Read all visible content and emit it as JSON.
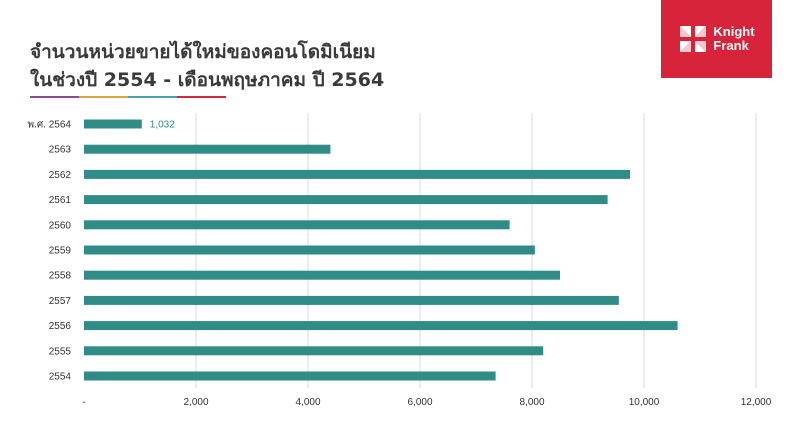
{
  "header": {
    "title_line1": "จำนวนหน่วยขายได้ใหม่ของคอนโดมิเนียม",
    "title_line2": "ในช่วงปี 2554 - เดือนพฤษภาคม ปี 2564"
  },
  "logo": {
    "line1": "Knight",
    "line2": "Frank",
    "icon": "knight-frank-mark",
    "color": "#d8243a"
  },
  "colors": {
    "bar": "#2f8c87",
    "grid": "#d9d9d9",
    "rule": [
      "#8e4a9a",
      "#e0a63c",
      "#4aa0b5",
      "#d8243a"
    ]
  },
  "chart_data": {
    "type": "bar",
    "orientation": "horizontal",
    "categories": [
      "พ.ศ. 2564",
      "2563",
      "2562",
      "2561",
      "2560",
      "2559",
      "2558",
      "2557",
      "2556",
      "2555",
      "2554"
    ],
    "values": [
      1032,
      4400,
      9750,
      9350,
      7600,
      8050,
      8500,
      9550,
      10600,
      8200,
      7350
    ],
    "data_labels": [
      "1,032",
      "",
      "",
      "",
      "",
      "",
      "",
      "",
      "",
      "",
      ""
    ],
    "xlim": [
      0,
      12000
    ],
    "xticks": [
      0,
      2000,
      4000,
      6000,
      8000,
      10000,
      12000
    ],
    "xtick_labels": [
      "-",
      "2,000",
      "4,000",
      "6,000",
      "8,000",
      "10,000",
      "12,000"
    ],
    "grid": true,
    "legend": "none"
  }
}
